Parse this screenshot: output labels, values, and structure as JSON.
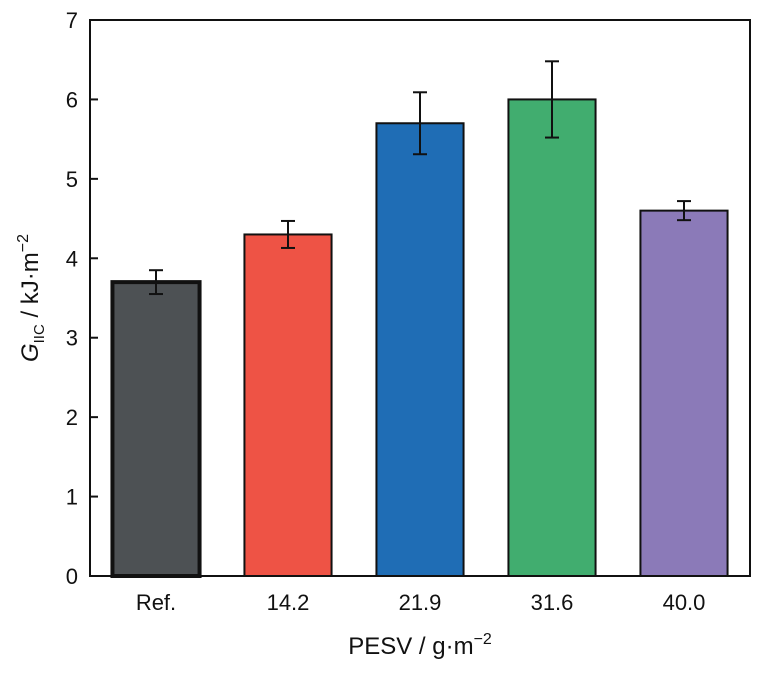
{
  "chart_data": {
    "type": "bar",
    "categories": [
      "Ref.",
      "14.2",
      "21.9",
      "31.6",
      "40.0"
    ],
    "values": [
      3.7,
      4.3,
      5.7,
      6.0,
      4.6
    ],
    "errors": [
      0.15,
      0.17,
      0.39,
      0.48,
      0.12
    ],
    "colors": [
      "#4d5154",
      "#ee5345",
      "#1f6db5",
      "#41ad6f",
      "#8b7ab8"
    ],
    "xlabel": {
      "main": "PESV / g·m",
      "sup": "−2"
    },
    "ylabel": {
      "symbol": "G",
      "sub": "IIC",
      "unit": " / kJ·m",
      "sup": "−2"
    },
    "ylim": [
      0,
      7
    ],
    "yticks": [
      "0",
      "1",
      "2",
      "3",
      "4",
      "5",
      "6",
      "7"
    ],
    "grid": false,
    "legend": null
  }
}
